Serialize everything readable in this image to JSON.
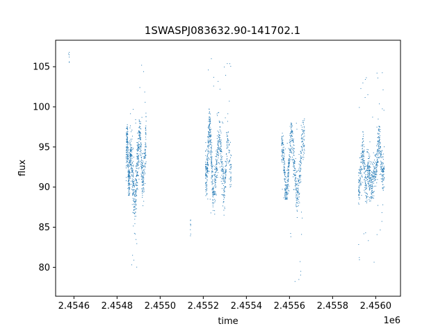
{
  "chart_data": {
    "type": "scatter",
    "title": "1SWASPJ083632.90-141702.1",
    "xlabel": "time",
    "ylabel": "flux",
    "x_offset_label": "1e6",
    "xlim": [
      2454515,
      2456115
    ],
    "ylim": [
      76.4,
      108.3
    ],
    "x_ticks": [
      2454600,
      2454800,
      2455000,
      2455200,
      2455400,
      2455600,
      2455800,
      2456000
    ],
    "x_tick_labels": [
      "2.4546",
      "2.4548",
      "2.4550",
      "2.4552",
      "2.4554",
      "2.4556",
      "2.4558",
      "2.4560"
    ],
    "y_ticks": [
      80,
      85,
      90,
      95,
      100,
      105
    ],
    "y_tick_labels": [
      "80",
      "85",
      "90",
      "95",
      "100",
      "105"
    ],
    "grid": false,
    "marker_color": "#1f77b4",
    "segments": [
      {
        "x": [
          2454574,
          2454580
        ],
        "y": [
          105.0,
          106.8
        ],
        "kind": "outliers",
        "n": 6
      },
      {
        "x": [
          2454842,
          2454862
        ],
        "y": [
          89.0,
          98.0
        ],
        "kind": "block",
        "n": 260,
        "center": 93.2,
        "amp": 2.8,
        "spread": 1.3
      },
      {
        "x": [
          2454862,
          2454900
        ],
        "y": [
          79.5,
          102.0
        ],
        "kind": "dip",
        "n": 320,
        "center": 90.5,
        "amp": 5.5,
        "spread": 1.6
      },
      {
        "x": [
          2454900,
          2454935
        ],
        "y": [
          87.0,
          106.0
        ],
        "kind": "block",
        "n": 240,
        "center": 93.5,
        "amp": 3.0,
        "spread": 1.5
      },
      {
        "x": [
          2455140,
          2455142
        ],
        "y": [
          83.5,
          86.0
        ],
        "kind": "outliers",
        "n": 8
      },
      {
        "x": [
          2455210,
          2455242
        ],
        "y": [
          86.0,
          106.5
        ],
        "kind": "block",
        "n": 300,
        "center": 94.2,
        "amp": 3.2,
        "spread": 1.3
      },
      {
        "x": [
          2455242,
          2455300
        ],
        "y": [
          86.5,
          105.0
        ],
        "kind": "block",
        "n": 320,
        "center": 92.5,
        "amp": 3.5,
        "spread": 1.4
      },
      {
        "x": [
          2455300,
          2455330
        ],
        "y": [
          90.0,
          106.5
        ],
        "kind": "block",
        "n": 120,
        "center": 93.5,
        "amp": 2.5,
        "spread": 1.2
      },
      {
        "x": [
          2455563,
          2455605
        ],
        "y": [
          88.5,
          98.5
        ],
        "kind": "block",
        "n": 280,
        "center": 92.0,
        "amp": 3.0,
        "spread": 1.1
      },
      {
        "x": [
          2455605,
          2455670
        ],
        "y": [
          78.0,
          98.5
        ],
        "kind": "block",
        "n": 320,
        "center": 92.8,
        "amp": 3.5,
        "spread": 1.3
      },
      {
        "x": [
          2455920,
          2455960
        ],
        "y": [
          78.0,
          106.0
        ],
        "kind": "block",
        "n": 220,
        "center": 92.0,
        "amp": 2.2,
        "spread": 1.3
      },
      {
        "x": [
          2455960,
          2456000
        ],
        "y": [
          80.0,
          103.0
        ],
        "kind": "dip",
        "n": 240,
        "center": 91.0,
        "amp": 2.5,
        "spread": 1.3
      },
      {
        "x": [
          2456000,
          2456040
        ],
        "y": [
          83.0,
          105.5
        ],
        "kind": "block",
        "n": 240,
        "center": 93.5,
        "amp": 2.0,
        "spread": 1.2
      }
    ]
  }
}
